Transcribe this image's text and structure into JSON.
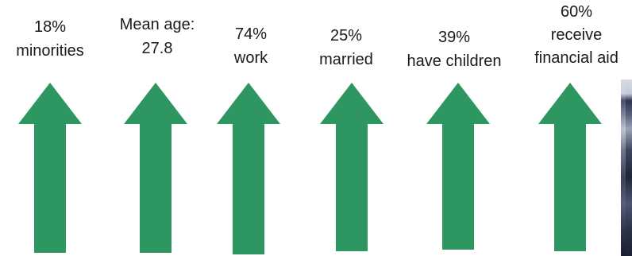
{
  "stats": [
    {
      "lines": [
        "18%",
        "minorities"
      ]
    },
    {
      "lines": [
        "Mean age:",
        "27.8"
      ]
    },
    {
      "lines": [
        "74%",
        "work"
      ]
    },
    {
      "lines": [
        "25%",
        "married"
      ]
    },
    {
      "lines": [
        "39%",
        "have children"
      ]
    },
    {
      "lines": [
        "60%",
        "receive",
        "financial aid"
      ]
    }
  ],
  "colors": {
    "arrow": "#2e9660",
    "text": "#1a1a1a"
  },
  "icons": {
    "arrow": "up-arrow-icon",
    "photo": "photo-thumbnail"
  }
}
